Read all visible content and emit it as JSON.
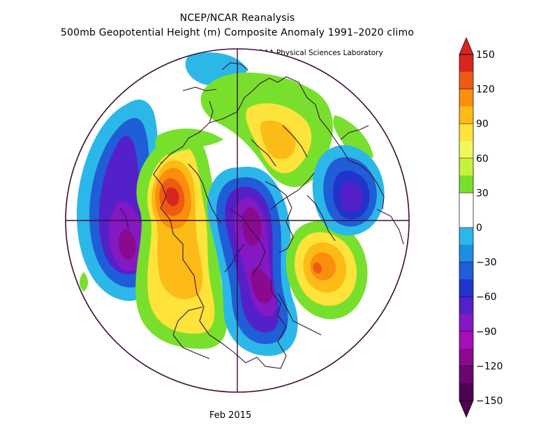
{
  "header": {
    "title": "NCEP/NCAR Reanalysis",
    "subtitle": "500mb Geopotential Height (m) Composite Anomaly 1991–2020 climo",
    "credit": "NOAA Physical Sciences Laboratory"
  },
  "footer": {
    "period": "Feb 2015"
  },
  "colorbar": {
    "labels": [
      "150",
      "120",
      "90",
      "60",
      "30",
      "0",
      "−30",
      "−60",
      "−90",
      "−120",
      "−150"
    ],
    "colors": [
      "#d7261d",
      "#ee5a12",
      "#fb8e0b",
      "#fdbb18",
      "#fde33a",
      "#f1f75a",
      "#c6f23f",
      "#78e02d",
      "#ffffff",
      "#ffffff",
      "#2cb7e9",
      "#1d8ee0",
      "#1f5ed7",
      "#2233cc",
      "#5420c9",
      "#8418c2",
      "#a50fb8",
      "#8a0a8f",
      "#6b0670",
      "#4d0454"
    ]
  },
  "map_data": {
    "variable": "500mb Geopotential Height Anomaly",
    "units": "m",
    "projection": "north polar stereographic",
    "features": [
      {
        "name": "pacific-negative",
        "sign": "negative",
        "peak": -130
      },
      {
        "name": "west-na-ridge",
        "sign": "positive",
        "peak": 130
      },
      {
        "name": "eastern-na-trough",
        "sign": "negative",
        "peak": -120
      },
      {
        "name": "atlantic-ridge",
        "sign": "positive",
        "peak": 110
      },
      {
        "name": "siberia-negative",
        "sign": "negative",
        "peak": -90
      },
      {
        "name": "eurasia-positive",
        "sign": "positive",
        "peak": 70
      }
    ]
  }
}
